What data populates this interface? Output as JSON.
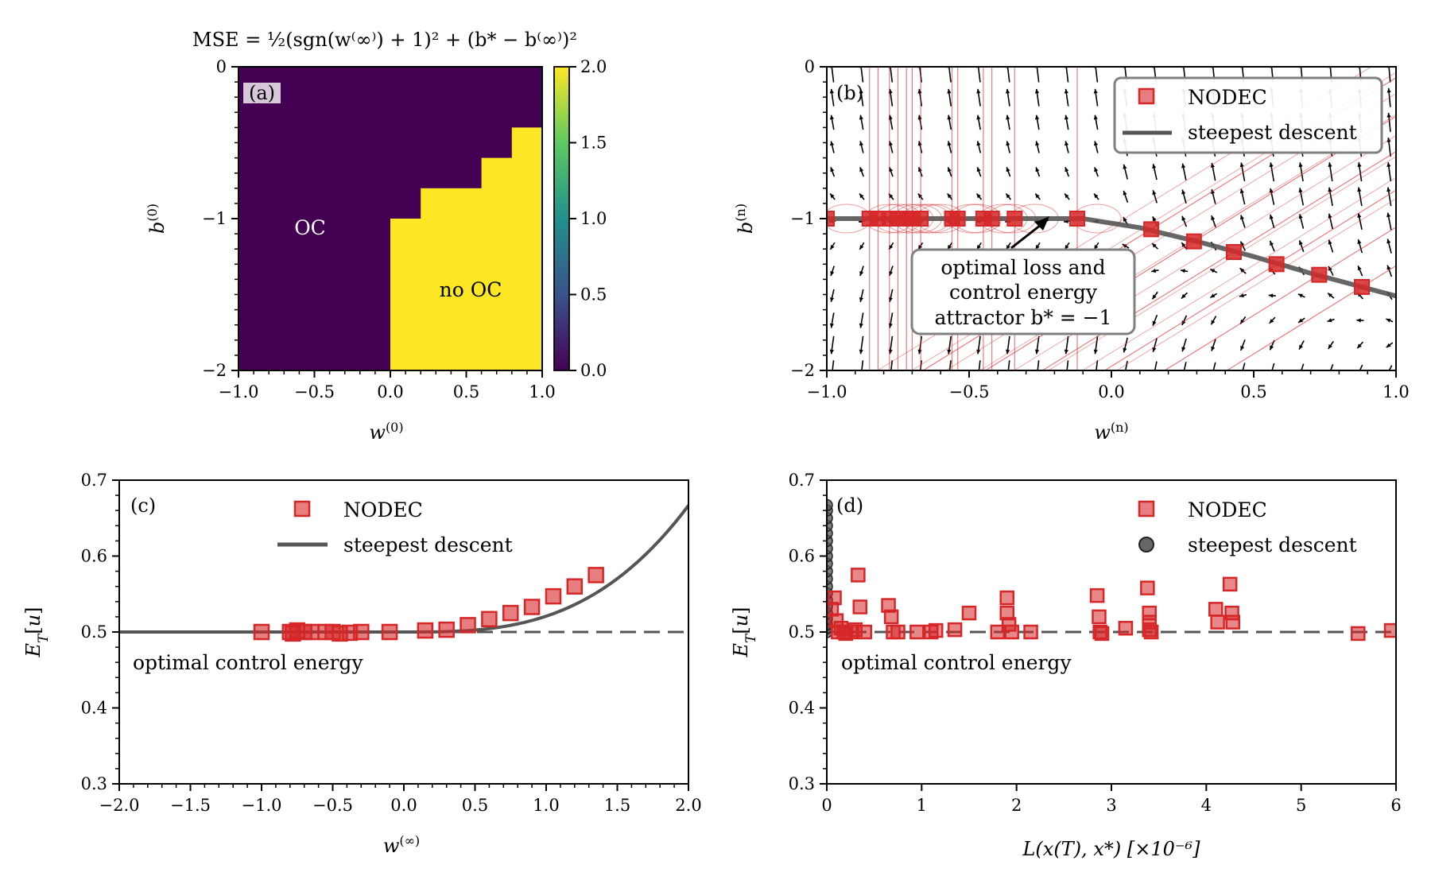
{
  "colors": {
    "nodec": "#d62728",
    "steepest": "#555555",
    "oc": "#440154",
    "no_oc": "#fde725",
    "quiver": "#000000"
  },
  "chart_data": [
    {
      "panel": "(a)",
      "type": "heatmap",
      "title": "MSE = ½(sgn(w⁽∞⁾) + 1)² + (b* − b⁽∞⁾)²",
      "xlabel": "w(0)",
      "ylabel": "b(0)",
      "xlim": [
        -1.0,
        1.0
      ],
      "ylim": [
        -2,
        0
      ],
      "xticks": [
        "−1.0",
        "−0.5",
        "0.0",
        "0.5",
        "1.0"
      ],
      "yticks": [
        "0",
        "−1",
        "−2"
      ],
      "colorbar": {
        "range": [
          0.0,
          2.0
        ],
        "ticks": [
          "2.0",
          "1.5",
          "1.0",
          "0.5",
          "0.0"
        ]
      },
      "regions": [
        {
          "label": "OC",
          "value": 0.0
        },
        {
          "label": "no OC",
          "value": 2.0
        }
      ],
      "boundary_steps": [
        {
          "x": [
            0.0,
            0.2
          ],
          "b_top": -1.0
        },
        {
          "x": [
            0.2,
            0.6
          ],
          "b_top": -0.8
        },
        {
          "x": [
            0.6,
            0.8
          ],
          "b_top": -0.6
        },
        {
          "x": [
            0.8,
            1.0
          ],
          "b_top": -0.4
        }
      ]
    },
    {
      "panel": "(b)",
      "type": "scatter",
      "xlabel": "w(n)",
      "ylabel": "b(n)",
      "xlim": [
        -1.0,
        1.0
      ],
      "ylim": [
        -2,
        0
      ],
      "xticks": [
        "−1.0",
        "−0.5",
        "0.0",
        "0.5",
        "1.0"
      ],
      "yticks": [
        "0",
        "−1",
        "−2"
      ],
      "legend": {
        "position": "top-right",
        "entries": [
          "NODEC",
          "steepest descent"
        ]
      },
      "annotation": [
        "optimal loss and",
        "control energy",
        "attractor b* = −1"
      ],
      "nodec_points": [
        [
          -1.0,
          -1.0
        ],
        [
          -0.85,
          -1.0
        ],
        [
          -0.82,
          -1.0
        ],
        [
          -0.78,
          -1.0
        ],
        [
          -0.75,
          -1.0
        ],
        [
          -0.72,
          -1.0
        ],
        [
          -0.7,
          -1.0
        ],
        [
          -0.67,
          -1.0
        ],
        [
          -0.56,
          -1.0
        ],
        [
          -0.54,
          -1.0
        ],
        [
          -0.45,
          -1.0
        ],
        [
          -0.42,
          -1.0
        ],
        [
          -0.34,
          -1.0
        ],
        [
          -0.12,
          -1.0
        ],
        [
          0.14,
          -1.07
        ],
        [
          0.29,
          -1.15
        ],
        [
          0.43,
          -1.22
        ],
        [
          0.58,
          -1.3
        ],
        [
          0.73,
          -1.37
        ],
        [
          0.88,
          -1.45
        ]
      ],
      "steepest_curve": [
        [
          -1.0,
          -1.0
        ],
        [
          -0.2,
          -1.0
        ],
        [
          -0.1,
          -1.0
        ],
        [
          0.0,
          -1.03
        ],
        [
          0.1,
          -1.06
        ],
        [
          0.3,
          -1.15
        ],
        [
          0.5,
          -1.25
        ],
        [
          0.7,
          -1.36
        ],
        [
          0.9,
          -1.46
        ],
        [
          1.0,
          -1.51
        ]
      ]
    },
    {
      "panel": "(c)",
      "type": "line",
      "xlabel": "w(∞)",
      "ylabel": "E_T[u]",
      "xlim": [
        -2.0,
        2.0
      ],
      "ylim": [
        0.3,
        0.7
      ],
      "xticks": [
        "−2.0",
        "−1.5",
        "−1.0",
        "−0.5",
        "0.0",
        "0.5",
        "1.0",
        "1.5",
        "2.0"
      ],
      "yticks": [
        "0.7",
        "0.6",
        "0.5",
        "0.4",
        "0.3"
      ],
      "legend": {
        "position": "top-center",
        "entries": [
          "NODEC",
          "steepest descent"
        ]
      },
      "hline": {
        "y": 0.5,
        "label": "optimal control energy"
      },
      "nodec_points": [
        [
          -1.0,
          0.5
        ],
        [
          -0.8,
          0.5
        ],
        [
          -0.78,
          0.498
        ],
        [
          -0.75,
          0.502
        ],
        [
          -0.7,
          0.5
        ],
        [
          -0.65,
          0.5
        ],
        [
          -0.55,
          0.5
        ],
        [
          -0.5,
          0.5
        ],
        [
          -0.45,
          0.498
        ],
        [
          -0.38,
          0.499
        ],
        [
          -0.3,
          0.5
        ],
        [
          -0.1,
          0.5
        ],
        [
          0.15,
          0.502
        ],
        [
          0.3,
          0.503
        ],
        [
          0.45,
          0.509
        ],
        [
          0.6,
          0.517
        ],
        [
          0.75,
          0.525
        ],
        [
          0.9,
          0.533
        ],
        [
          1.05,
          0.547
        ],
        [
          1.2,
          0.56
        ],
        [
          1.35,
          0.575
        ]
      ],
      "steepest_curve_rule": "E = 0.5 for w ≤ 0; E = 0.5 + 0.02083·w³ for w > 0"
    },
    {
      "panel": "(d)",
      "type": "scatter",
      "xlabel": "L(x(T), x*) [×10⁻⁶]",
      "ylabel": "E_T[u]",
      "xlim": [
        0,
        6
      ],
      "ylim": [
        0.3,
        0.7
      ],
      "xticks": [
        "0",
        "1",
        "2",
        "3",
        "4",
        "5",
        "6"
      ],
      "yticks": [
        "0.7",
        "0.6",
        "0.5",
        "0.4",
        "0.3"
      ],
      "legend": {
        "position": "top-right",
        "entries": [
          "NODEC",
          "steepest descent"
        ]
      },
      "hline": {
        "y": 0.5,
        "label": "optimal control energy"
      },
      "nodec_points": [
        [
          0.05,
          0.53
        ],
        [
          0.08,
          0.545
        ],
        [
          0.1,
          0.515
        ],
        [
          0.12,
          0.5
        ],
        [
          0.15,
          0.505
        ],
        [
          0.18,
          0.5
        ],
        [
          0.2,
          0.498
        ],
        [
          0.25,
          0.5
        ],
        [
          0.3,
          0.503
        ],
        [
          0.33,
          0.575
        ],
        [
          0.35,
          0.533
        ],
        [
          0.4,
          0.5
        ],
        [
          0.65,
          0.535
        ],
        [
          0.68,
          0.52
        ],
        [
          0.7,
          0.5
        ],
        [
          0.75,
          0.5
        ],
        [
          0.95,
          0.5
        ],
        [
          1.1,
          0.5
        ],
        [
          1.15,
          0.502
        ],
        [
          1.35,
          0.503
        ],
        [
          1.5,
          0.525
        ],
        [
          1.8,
          0.5
        ],
        [
          1.9,
          0.545
        ],
        [
          1.9,
          0.525
        ],
        [
          1.92,
          0.51
        ],
        [
          1.95,
          0.5
        ],
        [
          2.15,
          0.5
        ],
        [
          2.85,
          0.548
        ],
        [
          2.87,
          0.52
        ],
        [
          2.88,
          0.5
        ],
        [
          2.9,
          0.498
        ],
        [
          3.15,
          0.505
        ],
        [
          3.38,
          0.558
        ],
        [
          3.4,
          0.525
        ],
        [
          3.4,
          0.513
        ],
        [
          3.4,
          0.503
        ],
        [
          3.42,
          0.5
        ],
        [
          4.1,
          0.53
        ],
        [
          4.12,
          0.513
        ],
        [
          4.25,
          0.563
        ],
        [
          4.27,
          0.525
        ],
        [
          4.28,
          0.513
        ],
        [
          5.6,
          0.498
        ],
        [
          5.95,
          0.502
        ]
      ],
      "steepest_points_x": 0.0,
      "steepest_points_y": [
        0.5,
        0.505,
        0.51,
        0.517,
        0.525,
        0.533,
        0.542,
        0.551,
        0.56,
        0.57,
        0.58,
        0.59,
        0.6,
        0.61,
        0.62,
        0.63,
        0.64,
        0.65,
        0.66,
        0.667
      ]
    }
  ]
}
